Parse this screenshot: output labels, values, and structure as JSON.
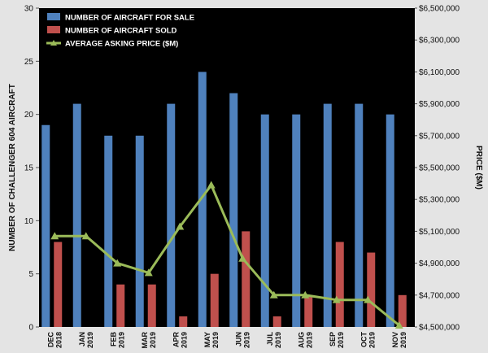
{
  "chart_data": {
    "type": "bar",
    "categories": [
      {
        "month": "DEC",
        "year": "2018"
      },
      {
        "month": "JAN",
        "year": "2019"
      },
      {
        "month": "FEB",
        "year": "2019"
      },
      {
        "month": "MAR",
        "year": "2019"
      },
      {
        "month": "APR",
        "year": "2019"
      },
      {
        "month": "MAY",
        "year": "2019"
      },
      {
        "month": "JUN",
        "year": "2019"
      },
      {
        "month": "JUL",
        "year": "2019"
      },
      {
        "month": "AUG",
        "year": "2019"
      },
      {
        "month": "SEP",
        "year": "2019"
      },
      {
        "month": "OCT",
        "year": "2019"
      },
      {
        "month": "NOV",
        "year": "2019"
      }
    ],
    "series": [
      {
        "name": "NUMBER OF AIRCRAFT FOR SALE",
        "type": "bar",
        "axis": "left",
        "color": "#4f81bd",
        "values": [
          19,
          21,
          18,
          18,
          21,
          24,
          22,
          20,
          20,
          21,
          21,
          20
        ]
      },
      {
        "name": "NUMBER OF AIRCRAFT SOLD",
        "type": "bar",
        "axis": "left",
        "color": "#c0504d",
        "values": [
          8,
          0,
          4,
          4,
          1,
          5,
          9,
          1,
          3,
          8,
          7,
          3
        ]
      },
      {
        "name": "AVERAGE ASKING PRICE ($M)",
        "type": "line",
        "axis": "right",
        "color": "#9bbb59",
        "values": [
          5070000,
          5070000,
          4900000,
          4840000,
          5130000,
          5390000,
          4930000,
          4700000,
          4700000,
          4670000,
          4670000,
          4510000
        ]
      }
    ],
    "ylabel": "NUMBER OF CHALLENGER 604 AIRCRAFT",
    "y2label": "PRICE ($M)",
    "ylim": [
      0,
      30
    ],
    "yticks": [
      "0",
      "5",
      "10",
      "15",
      "20",
      "25",
      "30"
    ],
    "y2lim": [
      4500000,
      6500000
    ],
    "y2ticks": [
      "$4,500,000",
      "$4,700,000",
      "$4,900,000",
      "$5,100,000",
      "$5,300,000",
      "$5,500,000",
      "$5,700,000",
      "$5,900,000",
      "$6,100,000",
      "$6,300,000",
      "$6,500,000"
    ],
    "legend_position": "top-left",
    "grid": false,
    "plot_background": "#000000"
  }
}
